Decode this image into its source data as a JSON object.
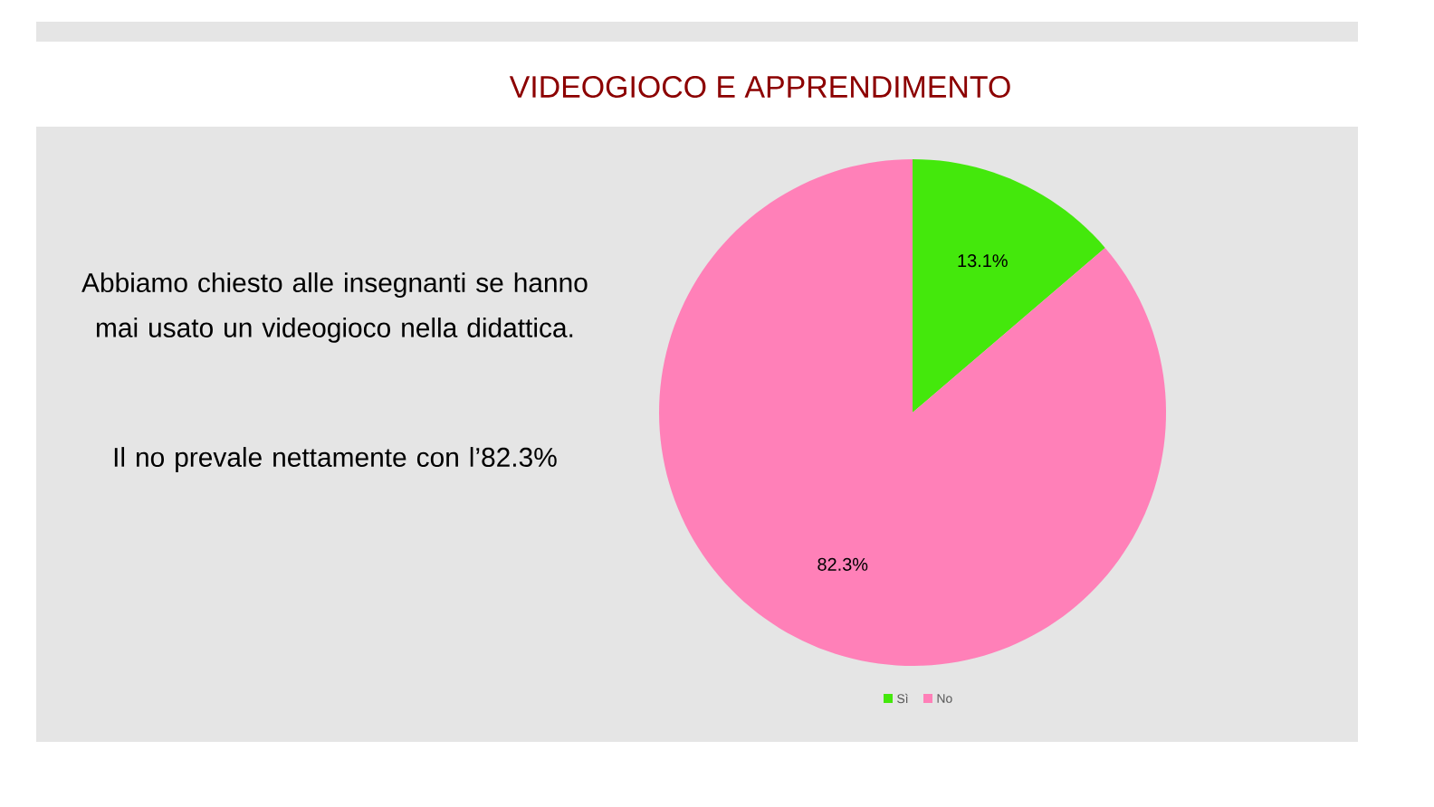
{
  "chart_data": {
    "type": "pie",
    "title": "VIDEOGIOCO E APPRENDIMENTO",
    "categories": [
      "Sì",
      "No"
    ],
    "values": [
      13.1,
      82.3
    ],
    "colors": [
      "#44e80c",
      "#ff80b8"
    ],
    "value_labels": [
      "13.1%",
      "82.3%"
    ],
    "legend": "bottom",
    "annotations": [
      "Abbiamo chiesto alle insegnanti se hanno mai usato un videogioco nella didattica.",
      "Il no prevale nettamente con l’82.3%"
    ]
  }
}
